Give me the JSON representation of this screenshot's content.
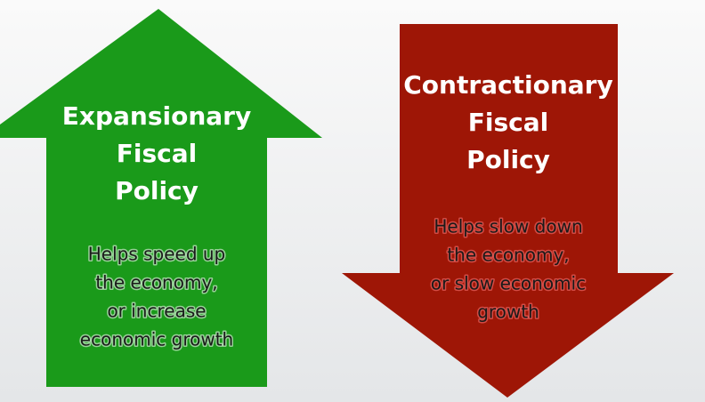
{
  "arrows": [
    {
      "title": [
        "Expansionary",
        "Fiscal",
        "Policy"
      ],
      "description": [
        "Helps speed up",
        "the economy,",
        "or increase",
        "economic growth"
      ]
    },
    {
      "title": [
        "Contractionary",
        "Fiscal",
        "Policy"
      ],
      "description": [
        "Helps slow down",
        "the economy,",
        "or slow economic",
        "growth"
      ]
    }
  ]
}
